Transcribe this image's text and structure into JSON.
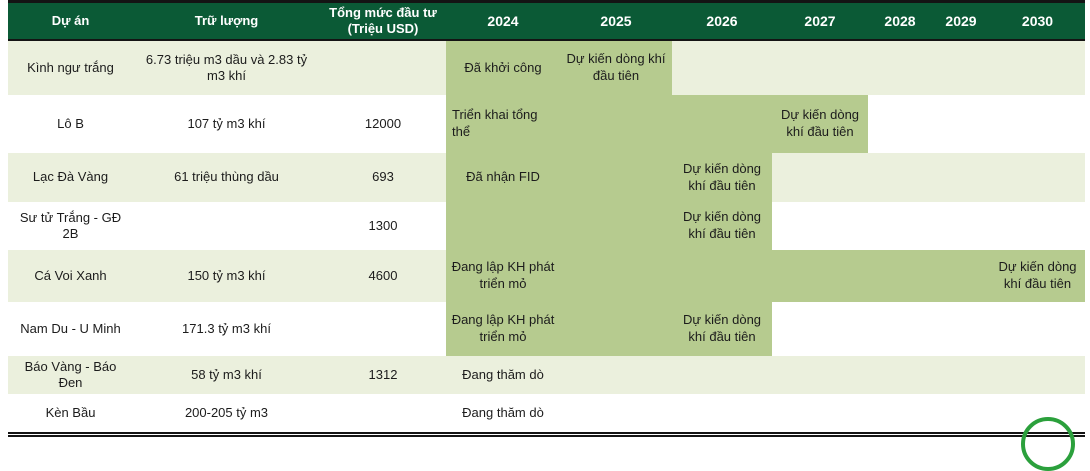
{
  "colors": {
    "header_bg": "#0b5a36",
    "header_text": "#ffffff",
    "row_alt_bg": "#ebf0dd",
    "bar_fill": "#b6cb8f",
    "border": "#141414",
    "circle_accent": "#2ba03c",
    "body_text": "#1c1c1c"
  },
  "chart_data": {
    "type": "gantt",
    "columns": {
      "project": "Dự án",
      "reserves": "Trữ lượng",
      "investment": "Tổng mức đầu tư (Triệu USD)"
    },
    "years": [
      "2024",
      "2025",
      "2026",
      "2027",
      "2028",
      "2029",
      "2030"
    ],
    "rows": [
      {
        "project": "Kình ngư trắng",
        "reserves": "6.73 triệu m3 dầu và 2.83 tỷ m3 khí",
        "investment": "",
        "bar_start": "2024",
        "bar_end": "2025",
        "milestones": {
          "2024": "Đã khởi công",
          "2025": "Dự kiến dòng khí đầu tiên"
        }
      },
      {
        "project": "Lô B",
        "reserves": "107 tỷ m3 khí",
        "investment": "12000",
        "bar_start": "2024",
        "bar_end": "2027",
        "milestones": {
          "2024": "Triển khai tổng thể",
          "2027": "Dự kiến dòng khí đầu tiên"
        }
      },
      {
        "project": "Lạc Đà Vàng",
        "reserves": "61 triệu thùng dầu",
        "investment": "693",
        "bar_start": "2024",
        "bar_end": "2026",
        "milestones": {
          "2024": "Đã nhận FID",
          "2026": "Dự kiến dòng khí đầu tiên"
        }
      },
      {
        "project": "Sư tử Trắng - GĐ 2B",
        "reserves": "",
        "investment": "1300",
        "bar_start": "2024",
        "bar_end": "2026",
        "milestones": {
          "2026": "Dự kiến dòng khí đầu tiên"
        }
      },
      {
        "project": "Cá Voi Xanh",
        "reserves": "150 tỷ m3 khí",
        "investment": "4600",
        "bar_start": "2024",
        "bar_end": "2030",
        "milestones": {
          "2024": "Đang lập KH phát triển mỏ",
          "2030": "Dự kiến dòng khí đầu tiên"
        }
      },
      {
        "project": "Nam Du - U Minh",
        "reserves": "171.3 tỷ m3 khí",
        "investment": "",
        "bar_start": "2024",
        "bar_end": "2026",
        "milestones": {
          "2024": "Đang lập KH phát triển mỏ",
          "2026": "Dự kiến dòng khí đầu tiên"
        }
      },
      {
        "project": "Báo Vàng - Báo Đen",
        "reserves": "58 tỷ m3 khí",
        "investment": "1312",
        "bar_start": null,
        "bar_end": null,
        "milestones": {
          "2024": "Đang thăm dò"
        }
      },
      {
        "project": "Kèn Bầu",
        "reserves": "200-205 tỷ m3",
        "investment": "",
        "bar_start": null,
        "bar_end": null,
        "milestones": {
          "2024": "Đang thăm dò"
        }
      }
    ]
  }
}
